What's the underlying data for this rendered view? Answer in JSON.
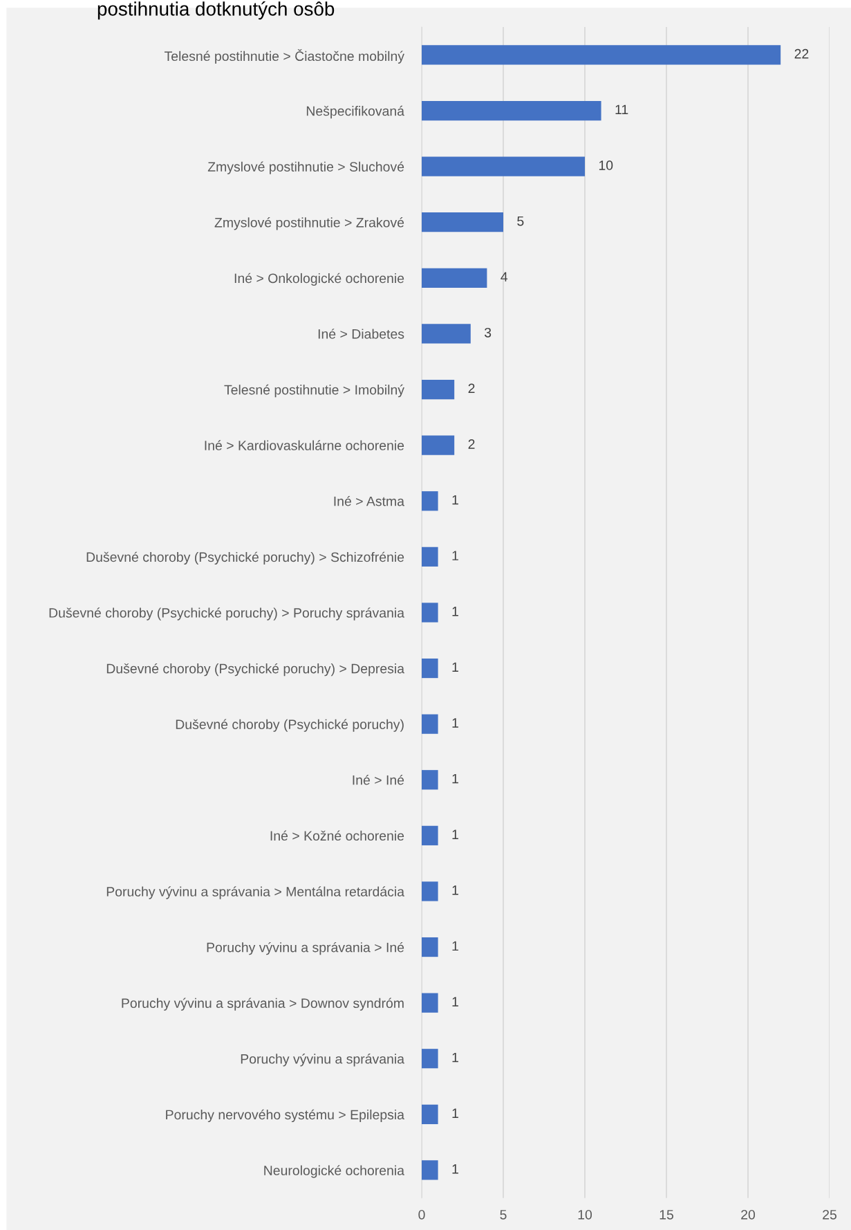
{
  "chart_data": {
    "type": "bar",
    "orientation": "horizontal",
    "title": "postihnutia dotknutých osôb",
    "categories": [
      "Telesné postihnutie > Čiastočne mobilný",
      "Nešpecifikovaná",
      "Zmyslové postihnutie > Sluchové",
      "Zmyslové postihnutie > Zrakové",
      "Iné > Onkologické ochorenie",
      "Iné > Diabetes",
      "Telesné postihnutie > Imobilný",
      "Iné > Kardiovaskulárne ochorenie",
      "Iné > Astma",
      "Duševné choroby (Psychické poruchy) > Schizofrénie",
      "Duševné choroby (Psychické poruchy) > Poruchy správania",
      "Duševné choroby (Psychické poruchy) > Depresia",
      "Duševné choroby (Psychické poruchy)",
      "Iné > Iné",
      "Iné > Kožné ochorenie",
      "Poruchy vývinu a správania > Mentálna retardácia",
      "Poruchy vývinu a správania > Iné",
      "Poruchy vývinu a správania > Downov syndróm",
      "Poruchy vývinu a správania",
      "Poruchy nervového systému > Epilepsia",
      "Neurologické ochorenia"
    ],
    "values": [
      22,
      11,
      10,
      5,
      4,
      3,
      2,
      2,
      1,
      1,
      1,
      1,
      1,
      1,
      1,
      1,
      1,
      1,
      1,
      1,
      1
    ],
    "color": "#4472c4",
    "xlim": [
      0,
      25
    ],
    "xticks": [
      0,
      5,
      10,
      15,
      20,
      25
    ],
    "grid": "x",
    "data_labels": true
  }
}
